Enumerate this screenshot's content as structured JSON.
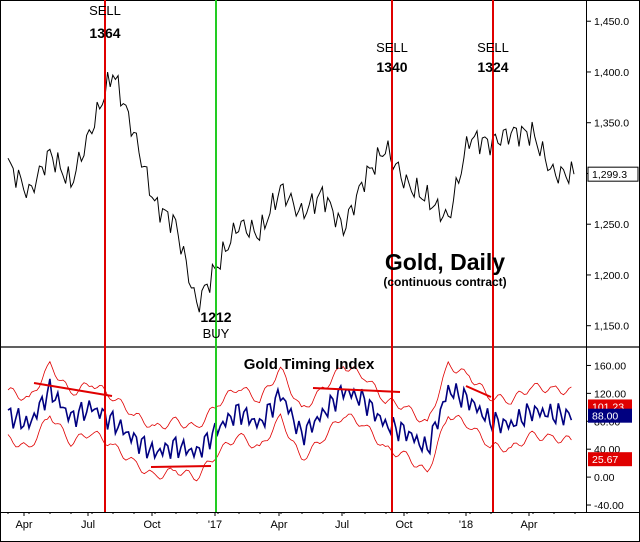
{
  "chart_data": [
    {
      "type": "line",
      "title": "Gold, Daily",
      "subtitle": "(continuous contract)",
      "ylim": [
        1130,
        1465
      ],
      "y_ticks": [
        "1,450.0",
        "1,400.0",
        "1,350.0",
        "1,300.0",
        "1,250.0",
        "1,200.0",
        "1,150.0"
      ],
      "y_tick_values": [
        1450,
        1400,
        1350,
        1300,
        1250,
        1200,
        1150
      ],
      "last_value_label": "1,299.3",
      "last_value": 1299.3,
      "series": [
        {
          "x": [
            "Mar",
            "Apr",
            "May",
            "Jun",
            "Jul",
            "Aug",
            "Sep",
            "Oct",
            "Nov",
            "Dec",
            "Jan",
            "Feb",
            "Mar",
            "Apr",
            "May",
            "Jun",
            "Jul",
            "Aug",
            "Sep",
            "Oct",
            "Nov",
            "Dec",
            "Jan",
            "Feb",
            "Mar",
            "Apr",
            "May",
            "Jun"
          ],
          "values": [
            1310,
            1280,
            1320,
            1290,
            1345,
            1400,
            1340,
            1270,
            1250,
            1170,
            1210,
            1250,
            1240,
            1285,
            1260,
            1280,
            1245,
            1295,
            1325,
            1290,
            1275,
            1255,
            1335,
            1330,
            1340,
            1340,
            1300,
            1299.3
          ]
        }
      ],
      "signals": [
        {
          "label": "SELL",
          "value": "1364",
          "color": "#e00000",
          "x": "Aug"
        },
        {
          "label": "BUY",
          "value": "1212",
          "color": "#22cc22",
          "x": "Jan"
        },
        {
          "label": "SELL",
          "value": "1340",
          "color": "#e00000",
          "x": "Sep"
        },
        {
          "label": "SELL",
          "value": "1324",
          "color": "#e00000",
          "x": "Jan"
        }
      ]
    },
    {
      "type": "line",
      "title": "Gold Timing Index",
      "ylim": [
        -50,
        185
      ],
      "y_ticks": [
        "160.00",
        "120.00",
        "80.00",
        "40.00",
        "0.00",
        "-40.00"
      ],
      "y_tick_values": [
        160,
        120,
        80,
        40,
        0,
        -40
      ],
      "badges": [
        {
          "text": "101.23",
          "value": 101.23,
          "color": "#e00000"
        },
        {
          "text": "88.00",
          "value": 88.0,
          "color": "#000080"
        },
        {
          "text": "25.67",
          "value": 25.67,
          "color": "#e00000"
        }
      ],
      "series": [
        {
          "x": [
            "Mar",
            "Apr",
            "May",
            "Jun",
            "Jul",
            "Aug",
            "Sep",
            "Oct",
            "Nov",
            "Dec",
            "Jan",
            "Feb",
            "Mar",
            "Apr",
            "May",
            "Jun",
            "Jul",
            "Aug",
            "Sep",
            "Oct",
            "Nov",
            "Dec",
            "Jan",
            "Feb",
            "Mar",
            "Apr",
            "May",
            "Jun"
          ],
          "values": [
            90,
            75,
            125,
            85,
            100,
            80,
            55,
            35,
            45,
            35,
            70,
            95,
            75,
            120,
            60,
            90,
            125,
            110,
            75,
            65,
            40,
            125,
            110,
            80,
            75,
            95,
            90,
            88
          ],
          "color": "#000080"
        }
      ],
      "x_tick_labels": [
        "Apr",
        "Jul",
        "Oct",
        "'17",
        "Apr",
        "Jul",
        "Oct",
        "'18",
        "Apr"
      ]
    }
  ]
}
